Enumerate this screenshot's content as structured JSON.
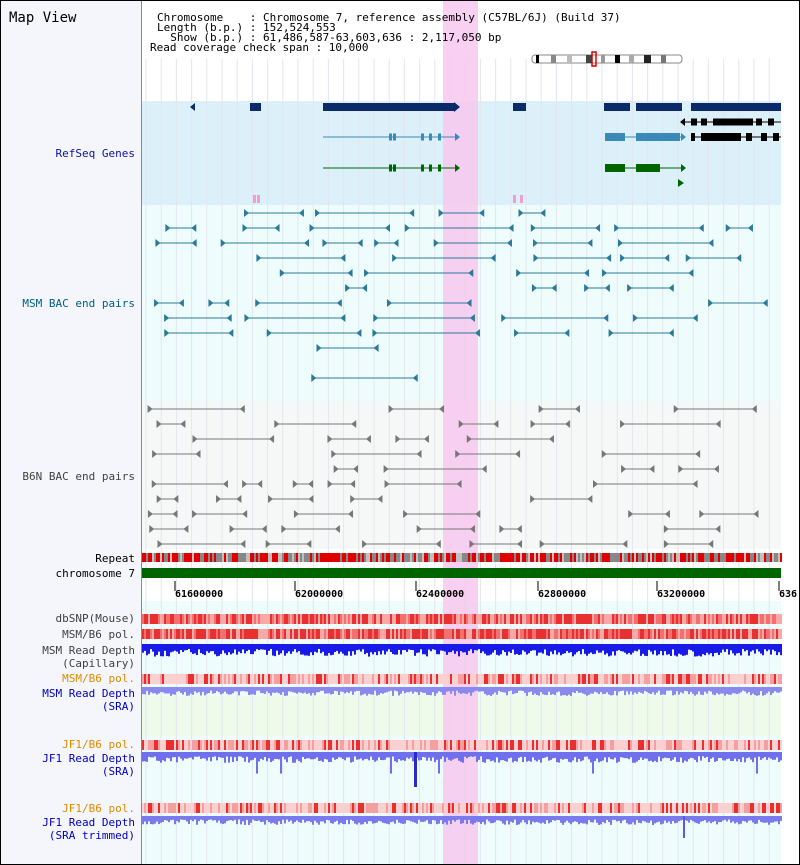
{
  "view_title": "Map View",
  "header": {
    "line1": "Chromosome    : Chromosome 7, reference assembly (C57BL/6J) (Build 37)",
    "line2": "Length (b.p.) : 152,524,553",
    "line3": "  Show (b.p.) : 61,486,587-63,603,636 : 2,117,050 bp",
    "line4": "Read coverage check span : 10,000"
  },
  "tracks": {
    "refseq": "RefSeq Genes",
    "msm_bac": "MSM BAC end pairs",
    "b6n_bac": "B6N BAC end pairs",
    "repeat": "Repeat",
    "chromosome": "chromosome 7",
    "dbsnp": "dbSNP(Mouse)",
    "msm_b6_pol": "MSM/B6 pol.",
    "msm_depth_cap": "MSM Read Depth\n(Capillary)",
    "msm_b6_pol2": "MSM/B6 pol.",
    "msm_depth_sra": "MSM Read Depth\n(SRA)",
    "jf1_b6_pol": "JF1/B6 pol.",
    "jf1_depth_sra": "JF1 Read Depth\n(SRA)",
    "jf1_b6_pol2": "JF1/B6 pol.",
    "jf1_depth_trim": "JF1 Read Depth\n(SRA trimmed)"
  },
  "axis": {
    "ticks": [
      "61600000",
      "62000000",
      "62400000",
      "62800000",
      "63200000",
      "636"
    ]
  },
  "colors": {
    "refseq_label": "#1010a0",
    "msm_label": "#006080",
    "b6n_label": "#404040",
    "orange_label": "#e08a00",
    "blue_label": "#0000c0",
    "highlight": "#f7c8ef",
    "gene_dark": "#0a2a6a",
    "gene_mid": "#3a8ab8",
    "gene_green": "#006400",
    "chrom_bar": "#006400"
  }
}
